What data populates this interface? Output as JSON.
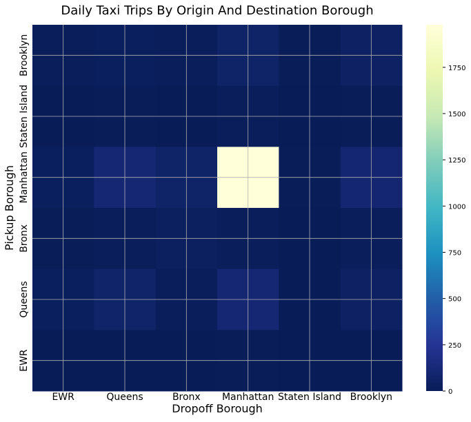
{
  "chart_data": {
    "type": "heatmap",
    "title": "Daily Taxi Trips By Origin And Destination Borough",
    "xlabel": "Dropoff Borough",
    "ylabel": "Pickup Borough",
    "x_categories": [
      "EWR",
      "Queens",
      "Bronx",
      "Manhattan",
      "Staten Island",
      "Brooklyn"
    ],
    "y_categories": [
      "Brooklyn",
      "Staten Island",
      "Manhattan",
      "Bronx",
      "Queens",
      "EWR"
    ],
    "values": [
      [
        10,
        20,
        15,
        60,
        5,
        45
      ],
      [
        0,
        5,
        2,
        10,
        0,
        5
      ],
      [
        20,
        110,
        60,
        1980,
        5,
        100
      ],
      [
        5,
        15,
        30,
        15,
        0,
        10
      ],
      [
        20,
        70,
        15,
        110,
        2,
        45
      ],
      [
        0,
        2,
        0,
        5,
        0,
        2
      ]
    ],
    "colorbar": {
      "min": 0,
      "max": 1980,
      "ticks": [
        0,
        250,
        500,
        750,
        1000,
        1250,
        1500,
        1750
      ],
      "colormap": "YlGnBu"
    },
    "grid": true
  }
}
